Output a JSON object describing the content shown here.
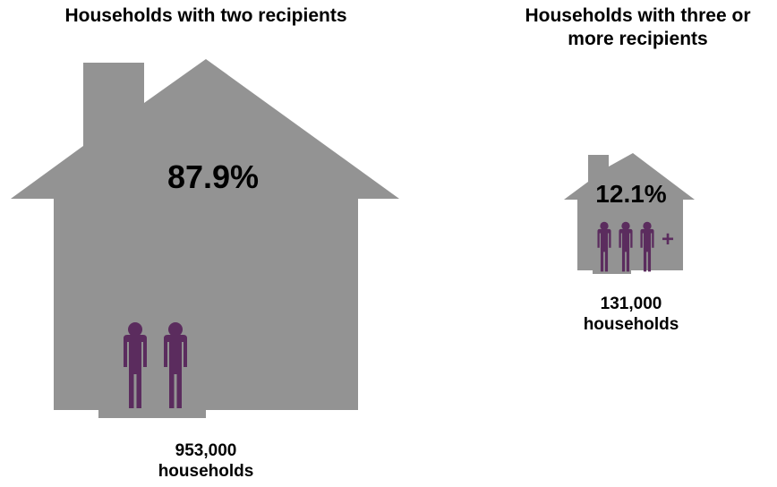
{
  "colors": {
    "house": "#939393",
    "person": "#5b2c5e",
    "text": "#000000"
  },
  "two_recipients": {
    "title": "Households with two recipients",
    "percent": "87.9%",
    "count": "953,000",
    "unit": "households",
    "share": 0.879
  },
  "three_plus_recipients": {
    "title_line1": "Households with three or",
    "title_line2": "more recipients",
    "percent": "12.1%",
    "plus": "+",
    "count": "131,000",
    "unit": "households",
    "share": 0.121
  }
}
